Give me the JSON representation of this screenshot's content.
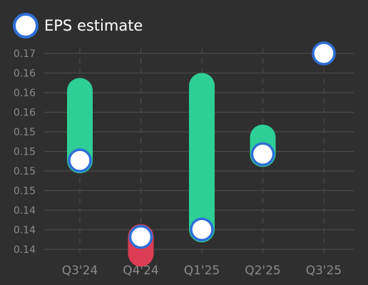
{
  "legend": {
    "label": "EPS estimate"
  },
  "colors": {
    "background": "#2f2f2f",
    "grid": "#4a4a4a",
    "tick_text": "#8a8a8a",
    "beat": "#2ecf96",
    "miss": "#dc3c55",
    "marker_fill": "#ffffff",
    "marker_stroke": "#2f6fd6"
  },
  "chart_data": {
    "type": "scatter",
    "title": "",
    "xlabel": "",
    "ylabel": "",
    "categories": [
      "Q3'24",
      "Q4'24",
      "Q1'25",
      "Q2'25",
      "Q3'25"
    ],
    "y_tick_labels": [
      "0.14",
      "0.14",
      "0.14",
      "0.15",
      "0.15",
      "0.15",
      "0.15",
      "0.16",
      "0.16",
      "0.16",
      "0.17"
    ],
    "ylim": [
      0.137,
      0.173
    ],
    "grid": true,
    "legend_position": "top-left",
    "series": [
      {
        "name": "EPS estimate",
        "values": [
          0.1528,
          0.1405,
          0.1417,
          0.1538,
          0.17
        ]
      }
    ],
    "actual_range_bars": [
      {
        "category": "Q3'24",
        "from": 0.1528,
        "to": 0.164,
        "result": "beat"
      },
      {
        "category": "Q4'24",
        "from": 0.1405,
        "to": 0.1378,
        "result": "miss"
      },
      {
        "category": "Q1'25",
        "from": 0.1417,
        "to": 0.1648,
        "result": "beat"
      },
      {
        "category": "Q2'25",
        "from": 0.1538,
        "to": 0.1565,
        "result": "beat"
      }
    ]
  }
}
